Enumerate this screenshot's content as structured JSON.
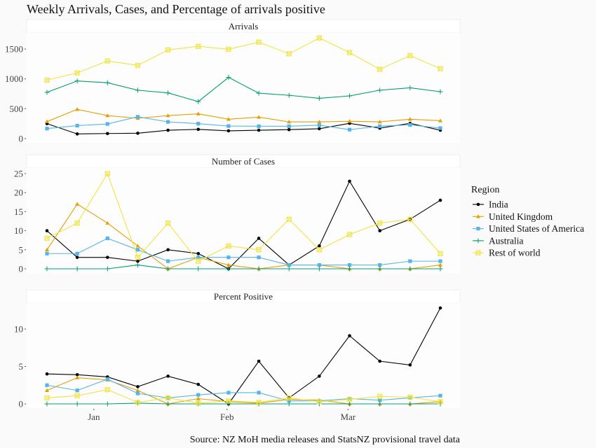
{
  "chart_data": {
    "type": "line",
    "title": "Weekly Arrivals, Cases, and Percentage of arrivals positive",
    "caption": "Source: NZ MoH media releases and StatsNZ provisional travel data",
    "legend": {
      "title": "Region",
      "placement": "right"
    },
    "x_tick_labels": [
      "Jan",
      "Feb",
      "Mar"
    ],
    "x_tick_index": [
      1.55,
      5.95,
      9.95
    ],
    "n_weeks": 14,
    "series_styles": [
      {
        "name": "India",
        "color": "#000000",
        "marker": "circle"
      },
      {
        "name": "United Kingdom",
        "color": "#E69F00",
        "marker": "triangle"
      },
      {
        "name": "United States of America",
        "color": "#56B4E9",
        "marker": "square"
      },
      {
        "name": "Australia",
        "color": "#009E73",
        "marker": "plus"
      },
      {
        "name": "Rest of world",
        "color": "#F0E442",
        "marker": "boxed-x"
      }
    ],
    "panels": [
      {
        "title": "Arrivals",
        "ylim": [
          0,
          1750
        ],
        "yticks": [
          0,
          500,
          1000,
          1500
        ],
        "series": [
          {
            "name": "India",
            "values": [
              250,
              78,
              85,
              90,
              140,
              155,
              130,
              140,
              150,
              165,
              255,
              175,
              255,
              140
            ]
          },
          {
            "name": "United Kingdom",
            "values": [
              285,
              490,
              385,
              340,
              385,
              415,
              325,
              360,
              280,
              280,
              290,
              280,
              325,
              300
            ]
          },
          {
            "name": "United States of America",
            "values": [
              168,
              217,
              245,
              365,
              280,
              250,
              210,
              207,
              207,
              225,
              150,
              207,
              230,
              175
            ]
          },
          {
            "name": "Australia",
            "values": [
              775,
              965,
              935,
              810,
              765,
              620,
              1025,
              760,
              725,
              675,
              715,
              810,
              850,
              785
            ]
          },
          {
            "name": "Rest of world",
            "values": [
              980,
              1100,
              1300,
              1225,
              1485,
              1545,
              1495,
              1615,
              1420,
              1685,
              1440,
              1160,
              1390,
              1170
            ]
          }
        ]
      },
      {
        "title": "Number of Cases",
        "ylim": [
          0,
          26
        ],
        "yticks": [
          0,
          5,
          10,
          15,
          20,
          25
        ],
        "series": [
          {
            "name": "India",
            "values": [
              10,
              3,
              3,
              2,
              5,
              4,
              0,
              8,
              1,
              6,
              23,
              10,
              13,
              18
            ]
          },
          {
            "name": "United Kingdom",
            "values": [
              5,
              17,
              12,
              6,
              0,
              3,
              1,
              0,
              1,
              1,
              0,
              0,
              0,
              1
            ]
          },
          {
            "name": "United States of America",
            "values": [
              4,
              4,
              8,
              5,
              2,
              3,
              3,
              3,
              1,
              1,
              1,
              1,
              2,
              2
            ]
          },
          {
            "name": "Australia",
            "values": [
              0,
              0,
              0,
              1,
              0,
              0,
              0,
              0,
              0,
              0,
              0,
              0,
              0,
              0
            ]
          },
          {
            "name": "Rest of world",
            "values": [
              8,
              12,
              25,
              3,
              12,
              2,
              6,
              5,
              13,
              5,
              9,
              12,
              13,
              4
            ]
          }
        ]
      },
      {
        "title": "Percent Positive",
        "ylim": [
          0,
          13.5
        ],
        "yticks": [
          0,
          5,
          10
        ],
        "series": [
          {
            "name": "India",
            "values": [
              4.0,
              3.9,
              3.6,
              2.3,
              3.7,
              2.6,
              0.0,
              5.7,
              0.8,
              3.7,
              9.1,
              5.7,
              5.2,
              12.8
            ]
          },
          {
            "name": "United Kingdom",
            "values": [
              1.8,
              3.5,
              3.2,
              1.8,
              0.0,
              0.7,
              0.3,
              0.1,
              0.6,
              0.5,
              0.0,
              0.0,
              0.0,
              0.3
            ]
          },
          {
            "name": "United States of America",
            "values": [
              2.5,
              1.8,
              3.3,
              1.4,
              0.8,
              1.2,
              1.5,
              1.5,
              0.4,
              0.4,
              0.7,
              0.5,
              0.8,
              1.1
            ]
          },
          {
            "name": "Australia",
            "values": [
              0,
              0,
              0,
              0.1,
              0,
              0,
              0,
              0,
              0,
              0,
              0,
              0,
              0,
              0
            ]
          },
          {
            "name": "Rest of world",
            "values": [
              0.8,
              1.1,
              1.9,
              0.2,
              0.8,
              0.1,
              0.4,
              0.2,
              0.8,
              0.3,
              0.6,
              1.0,
              0.9,
              0.3
            ]
          }
        ]
      }
    ]
  }
}
